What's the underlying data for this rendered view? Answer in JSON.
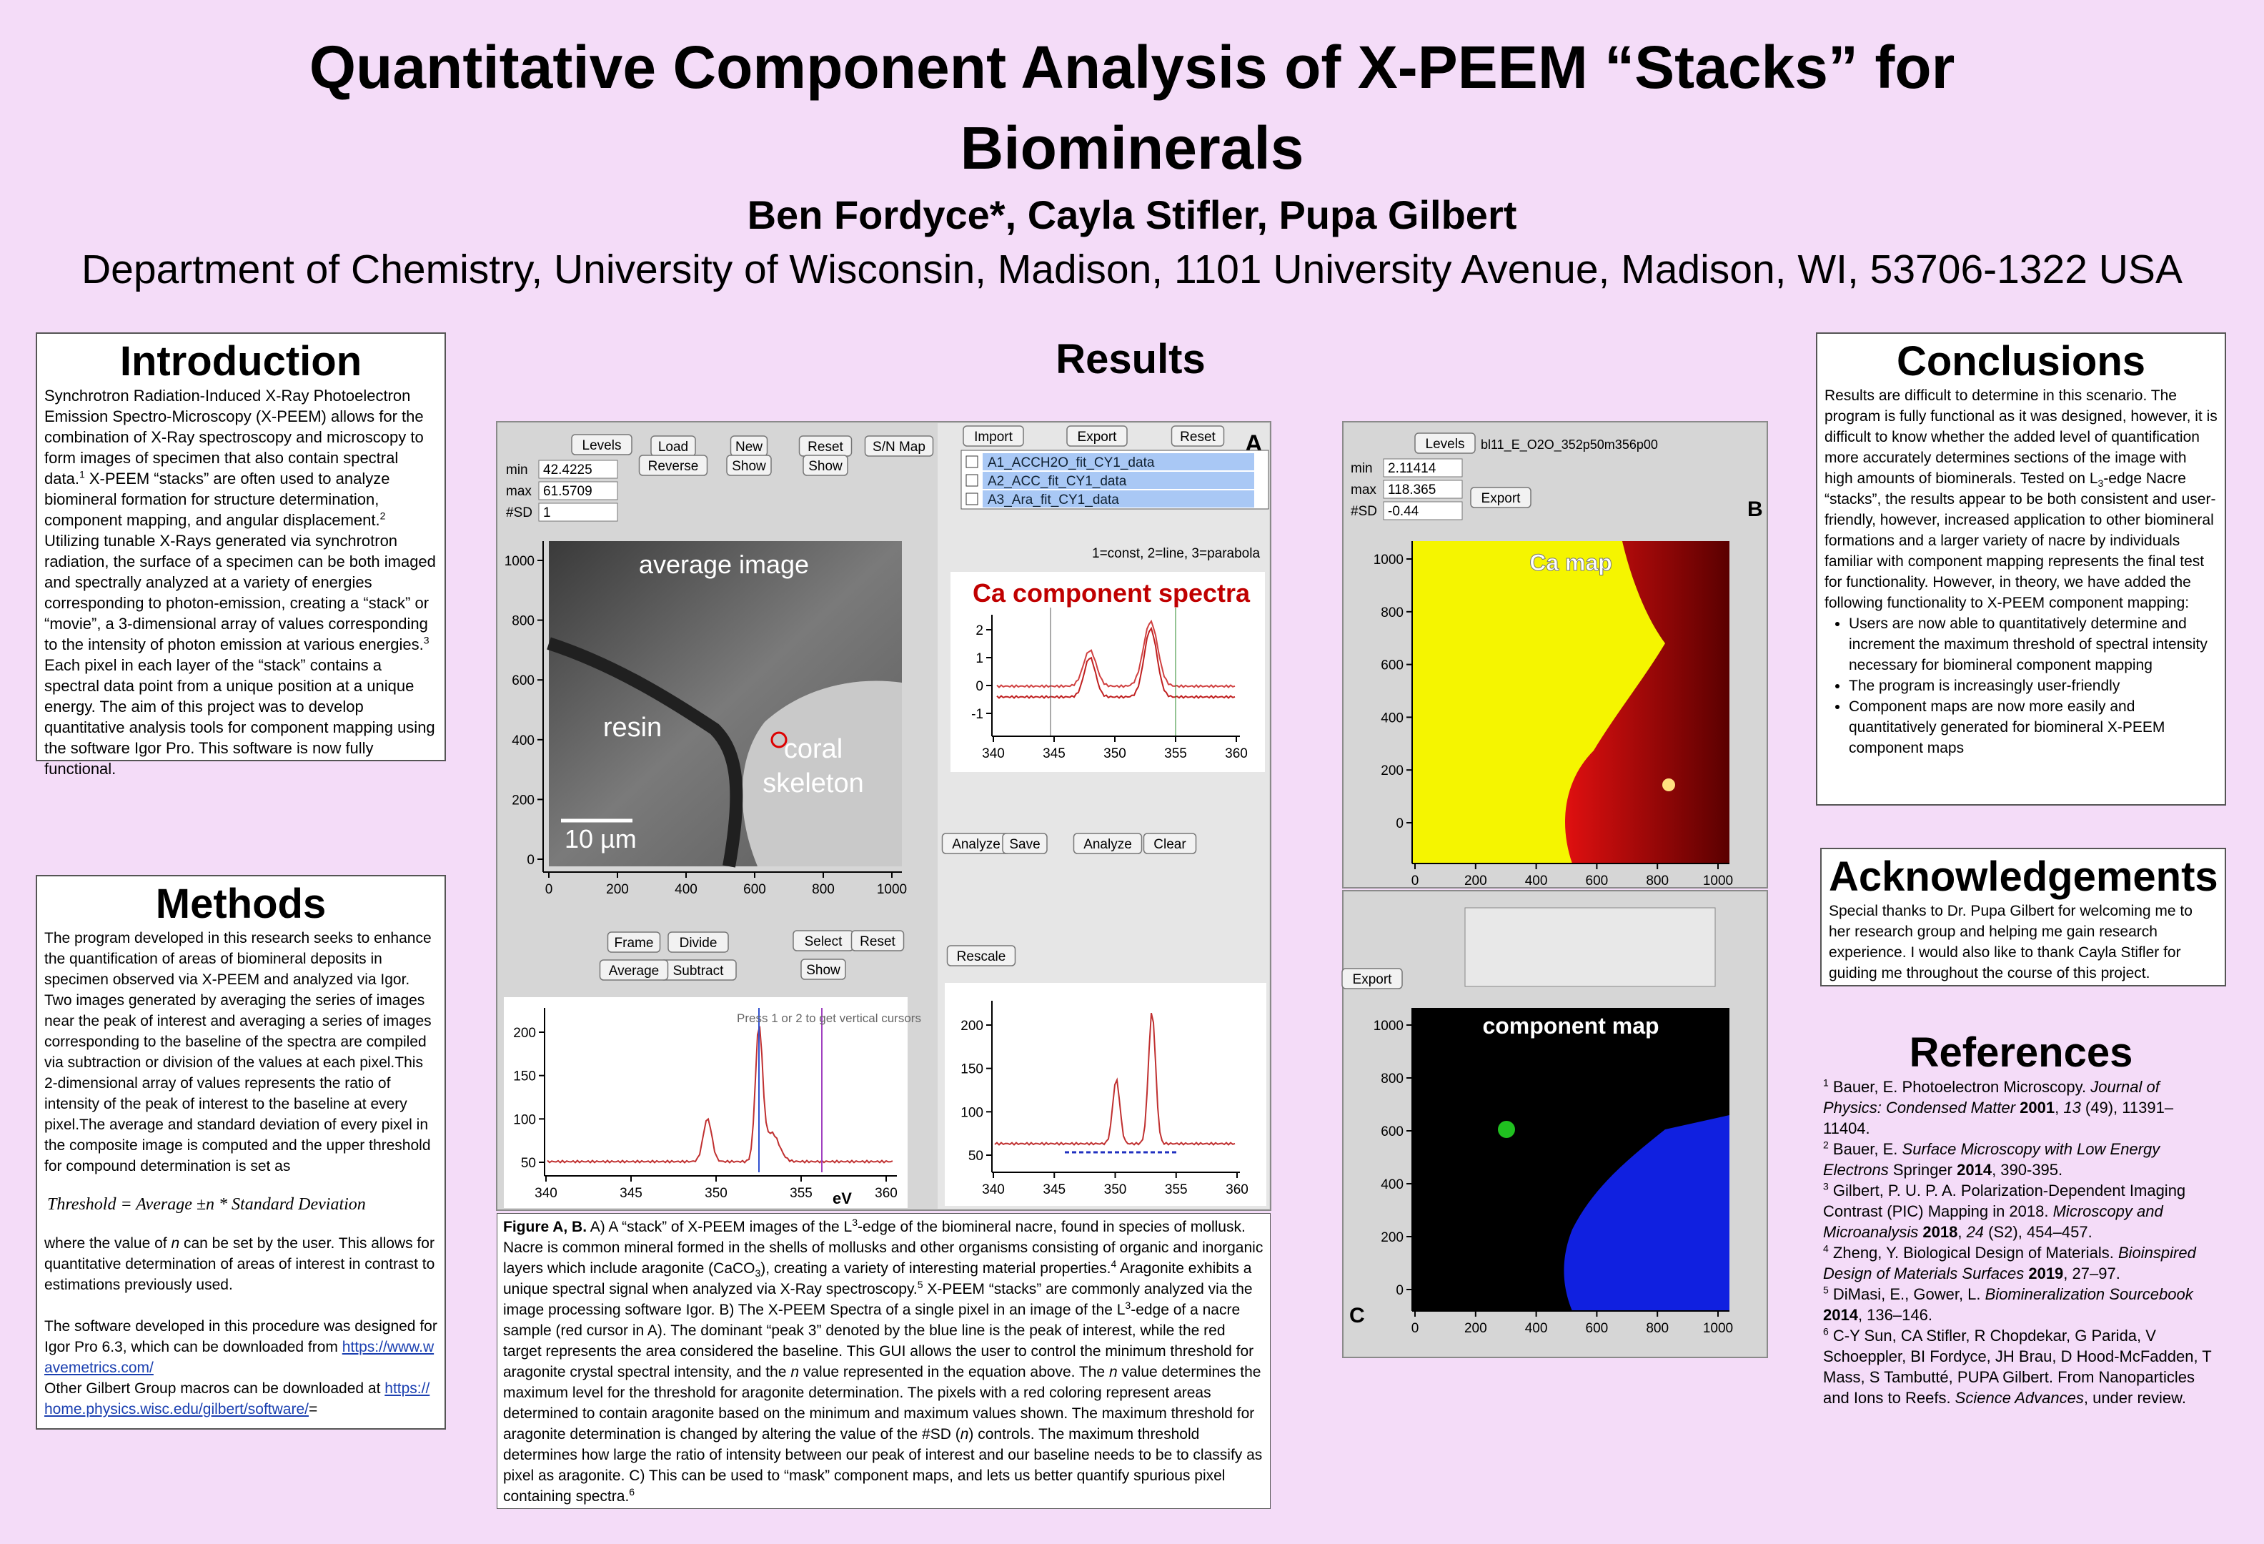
{
  "header": {
    "title": "Quantitative Component Analysis of X-PEEM “Stacks” for Biominerals",
    "authors": "Ben Fordyce*, Cayla Stifler, Pupa Gilbert",
    "affiliation": "Department of Chemistry, University of Wisconsin, Madison, 1101 University Avenue, Madison, WI, 53706-1322 USA"
  },
  "introduction": {
    "heading": "Introduction",
    "body": [
      {
        "t": "Synchrotron Radiation-Induced X-Ray Photoelectron Emission Spectro-Microscopy (X-PEEM) allows for the combination of X-Ray spectroscopy and microscopy to form images of specimen that also contain spectral data."
      },
      {
        "sup": "1"
      },
      {
        "t": " X-PEEM “stacks” are often used to analyze biomineral formation for structure determination, component mapping, and angular displacement."
      },
      {
        "sup": "2"
      },
      {
        "t": " Utilizing tunable X-Rays generated via synchrotron radiation, the surface of a specimen can be both imaged and spectrally analyzed at a variety of energies corresponding to photon-emission, creating a “stack” or “movie”, a 3-dimensional array of values corresponding to the intensity of photon emission at various energies."
      },
      {
        "sup": "3"
      },
      {
        "t": " Each pixel in each layer of the “stack” contains a spectral data point from a unique position at a unique energy. The aim of this project was to develop quantitative analysis tools for component mapping using the software Igor Pro. This software is now fully functional."
      }
    ]
  },
  "methods": {
    "heading": "Methods",
    "body1": [
      {
        "t": "The program developed in this research seeks to enhance the quantification of areas of biomineral deposits in specimen observed via X-PEEM and analyzed via Igor. Two images generated by averaging the series of images near the peak of interest and averaging a series of images corresponding to the baseline of the spectra are compiled via subtraction or division of the values at each pixel.This 2-dimensional array of values represents the ratio of intensity of the peak of interest to the baseline at every pixel.The average and standard deviation of every pixel in the composite image is computed and the upper threshold for compound determination is set as"
      }
    ],
    "formula": "Threshold = Average ±n * Standard Deviation",
    "body2": [
      {
        "t": "where the value of "
      },
      {
        "i": "n"
      },
      {
        "t": " can be set by the user. This allows for quantitative determination of areas of interest in contrast to estimations previously used."
      }
    ],
    "body3": [
      {
        "t": "The software developed in this procedure was designed for Igor Pro 6.3, which can be downloaded from "
      },
      {
        "a": "https://www.wavemetrics.com/"
      }
    ],
    "body4": [
      {
        "t": "Other Gilbert Group macros can be downloaded at "
      },
      {
        "a": "https://home.physics.wisc.edu/gilbert/software/"
      },
      {
        "t": "="
      }
    ]
  },
  "results": {
    "heading": "Results",
    "caption": [
      {
        "b": "Figure A, B."
      },
      {
        "t": "  A) A “stack” of X-PEEM images of the L"
      },
      {
        "sup": "3"
      },
      {
        "t": "-edge of the biomineral nacre, found in species of mollusk. Nacre is common mineral formed in the shells of mollusks and other organisms consisting of organic and inorganic layers which include aragonite (CaCO"
      },
      {
        "sub": "3"
      },
      {
        "t": "), creating a variety of interesting material properties."
      },
      {
        "sup": "4"
      },
      {
        "t": " Aragonite exhibits a unique spectral signal when analyzed via X-Ray spectroscopy."
      },
      {
        "sup": "5"
      },
      {
        "t": " X-PEEM “stacks” are commonly analyzed via the image processing software Igor. B) The X-PEEM Spectra of a single pixel in an image of the L"
      },
      {
        "sup": "3"
      },
      {
        "t": "-edge of a nacre sample (red cursor in A). The dominant “peak 3” denoted by the blue line is the peak of interest, while the red target represents the area considered the baseline. This GUI allows the user to control the minimum threshold for aragonite crystal spectral intensity, and the "
      },
      {
        "i": "n"
      },
      {
        "t": " value represented in the equation above. The "
      },
      {
        "i": "n"
      },
      {
        "t": " value determines the maximum level for the threshold for aragonite determination. The pixels with a red coloring represent areas determined to contain aragonite based on the minimum and maximum values shown. The maximum threshold for aragonite determination is changed by altering the value of the #SD ("
      },
      {
        "i": "n"
      },
      {
        "t": ") controls. The maximum threshold determines how large the ratio of intensity between our peak of interest and our baseline needs to be to classify as pixel as aragonite. C) This can be used to “mask” component maps, and lets us better quantify spurious pixel containing spectra."
      },
      {
        "sup": "6"
      }
    ]
  },
  "figure_a": {
    "label": "A",
    "image_title": "average image",
    "resin": "resin",
    "coral": [
      "coral",
      "skeleton"
    ],
    "scale": "10 µm",
    "image_xticks": [
      0,
      200,
      400,
      600,
      800,
      1000
    ],
    "image_yticks": [
      0,
      200,
      400,
      600,
      800,
      1000
    ],
    "spectra_title": "Ca component spectra",
    "spectra_xticks": [
      340,
      345,
      350,
      355,
      360
    ],
    "spectra_yticks": [
      -1,
      0,
      1,
      2
    ],
    "pixel_xticks": [
      340,
      345,
      350,
      355,
      360
    ],
    "pixel_yticks": [
      50,
      100,
      150,
      200
    ],
    "pixel_xlabel": "eV",
    "pixel_note": "Press 1 or 2 to get vertical cursors",
    "fit_xticks": [
      340,
      345,
      350,
      355,
      360
    ],
    "fit_yticks": [
      50,
      100,
      150,
      200
    ],
    "list": [
      "A1_ACCH2O_fit_CY1_data",
      "A2_ACC_fit_CY1_data",
      "A3_Ara_fit_CY1_data"
    ],
    "bg_terms": "1=const, 2=line, 3=parabola",
    "fields": [
      {
        "label": "min",
        "value": "42.4225"
      },
      {
        "label": "max",
        "value": "61.5709"
      },
      {
        "label": "#SD",
        "value": "1"
      }
    ],
    "buttons": [
      "Import",
      "Export",
      "Reset",
      "Load",
      "Reverse",
      "New",
      "Show",
      "Reset",
      "Show",
      "S/N Map",
      "Levels",
      "Frame",
      "Divide",
      "Subtract",
      "Average",
      "Select",
      "Reset",
      "Show",
      "Analyze",
      "Save",
      "Analyze",
      "Clear",
      "Rescale"
    ]
  },
  "figure_b": {
    "label": "B",
    "file": "bl11_E_O2O_352p50m356p00",
    "image_title": "Ca map",
    "xticks": [
      0,
      200,
      400,
      600,
      800,
      1000
    ],
    "yticks": [
      0,
      200,
      400,
      600,
      800,
      1000
    ],
    "fields": [
      {
        "label": "min",
        "value": "2.11414"
      },
      {
        "label": "max",
        "value": "118.365"
      },
      {
        "label": "#SD",
        "value": "-0.44"
      }
    ],
    "buttons": [
      "Levels",
      "Export"
    ]
  },
  "figure_c": {
    "label": "C",
    "image_title": "component map",
    "xticks": [
      0,
      200,
      400,
      600,
      800,
      1000
    ],
    "yticks": [
      0,
      200,
      400,
      600,
      800,
      1000
    ],
    "buttons": [
      "Export"
    ]
  },
  "conclusions": {
    "heading": "Conclusions",
    "body": [
      {
        "t": "Results are difficult to determine in this scenario. The program is fully functional as it was designed, however, it is difficult to know whether the added level of quantification more accurately determines sections of the image with high amounts of biominerals. Tested on L"
      },
      {
        "sub": "3"
      },
      {
        "t": "-edge Nacre “stacks”, the results appear to be both consistent and user-friendly, however, increased application to other biomineral formations and a larger variety of nacre by individuals familiar with component mapping represents the final test for functionality. However, in theory, we have added the following functionality to X-PEEM component mapping:"
      }
    ],
    "bullets": [
      "Users are now able to quantitatively determine and increment the maximum threshold of spectral intensity necessary for biomineral component mapping",
      "The program is increasingly user-friendly",
      "Component maps are now more easily and quantitatively generated for biomineral X-PEEM component maps"
    ]
  },
  "acknowledgements": {
    "heading": "Acknowledgements",
    "body": "Special thanks to Dr. Pupa Gilbert for welcoming me to her research group and helping me gain research experience. I would also like to thank Cayla Stifler for guiding me throughout the course of this project."
  },
  "references": {
    "heading": "References",
    "items": [
      [
        {
          "sup": "1"
        },
        {
          "t": " Bauer, E. Photoelectron Microscopy. "
        },
        {
          "i": "Journal of Physics: Condensed Matter"
        },
        {
          "b": " 2001"
        },
        {
          "t": ", "
        },
        {
          "i": "13"
        },
        {
          "t": " (49), 11391–11404."
        }
      ],
      [
        {
          "sup": "2"
        },
        {
          "t": " Bauer, E. "
        },
        {
          "i": "Surface Microscopy with Low Energy Electrons"
        },
        {
          "t": " Springer "
        },
        {
          "b": "2014"
        },
        {
          "t": ", 390-395."
        }
      ],
      [
        {
          "sup": "3"
        },
        {
          "t": " Gilbert, P. U. P. A. Polarization-Dependent Imaging Contrast (PIC) Mapping in 2018. "
        },
        {
          "i": "Microscopy and Microanalysis"
        },
        {
          "b": " 2018"
        },
        {
          "t": ", "
        },
        {
          "i": "24"
        },
        {
          "t": " (S2), 454–457."
        }
      ],
      [
        {
          "sup": "4"
        },
        {
          "t": " Zheng, Y. Biological Design of Materials. "
        },
        {
          "i": "Bioinspired Design of Materials Surfaces"
        },
        {
          "b": " 2019"
        },
        {
          "t": ", 27–97."
        }
      ],
      [
        {
          "sup": "5"
        },
        {
          "t": " DiMasi, E., Gower, L. "
        },
        {
          "i": "Biomineralization Sourcebook"
        },
        {
          "b": " 2014"
        },
        {
          "t": ", 136–146."
        }
      ],
      [
        {
          "sup": "6"
        },
        {
          "t": " C-Y Sun, CA Stifler, R Chopdekar, G Parida, V Schoeppler, BI Fordyce, JH Brau, D Hood-McFadden, T Mass, S Tambutté, PUPA Gilbert. From Nanoparticles and Ions to Reefs. "
        },
        {
          "i": "Science Advances"
        },
        {
          "t": ", under review."
        }
      ]
    ]
  }
}
